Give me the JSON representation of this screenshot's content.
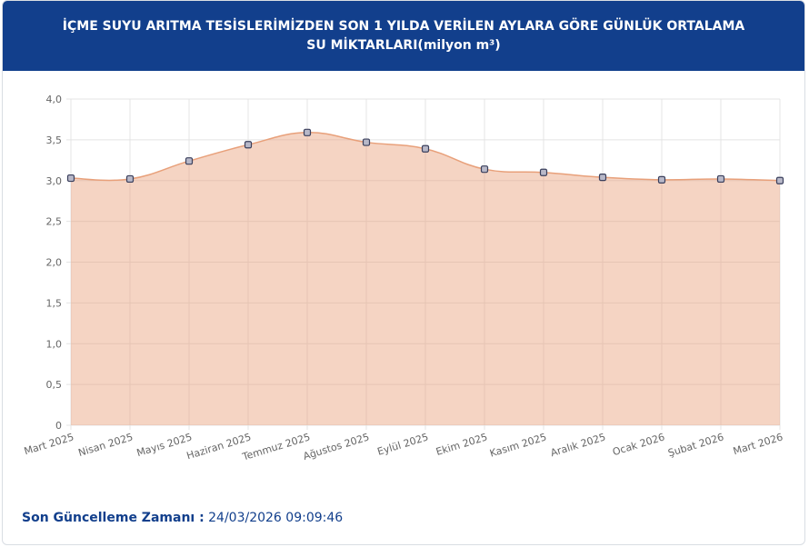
{
  "chart_data": {
    "type": "area",
    "title": "İÇME SUYU ARITMA TESİSLERİMİZDEN SON 1 YILDA VERİLEN AYLARA GÖRE GÜNLÜK ORTALAMA SU MİKTARLARI(milyon m³)",
    "categories": [
      "Mart 2025",
      "Nisan 2025",
      "Mayıs 2025",
      "Haziran 2025",
      "Temmuz 2025",
      "Ağustos 2025",
      "Eylül 2025",
      "Ekim 2025",
      "Kasım 2025",
      "Aralık 2025",
      "Ocak 2026",
      "Şubat 2026",
      "Mart 2026"
    ],
    "values": [
      3.03,
      3.02,
      3.24,
      3.44,
      3.59,
      3.47,
      3.39,
      3.14,
      3.1,
      3.04,
      3.01,
      3.02,
      3.0
    ],
    "color": "#e8a07a",
    "ylim": [
      0,
      4
    ],
    "yticks": [
      0,
      {
        "value": 0.5,
        "label": "0,5"
      },
      {
        "value": 1,
        "label": "1,0"
      },
      {
        "value": 1.5,
        "label": "1,5"
      },
      {
        "value": 2,
        "label": "2,0"
      },
      {
        "value": 2.5,
        "label": "2,5"
      },
      {
        "value": 3,
        "label": "3,0"
      },
      {
        "value": 3.5,
        "label": "3,5"
      },
      {
        "value": 4,
        "label": "4,0"
      }
    ],
    "grid": true
  },
  "footer": {
    "label": "Son Güncelleme Zamanı :",
    "value": "24/03/2026 09:09:46"
  }
}
